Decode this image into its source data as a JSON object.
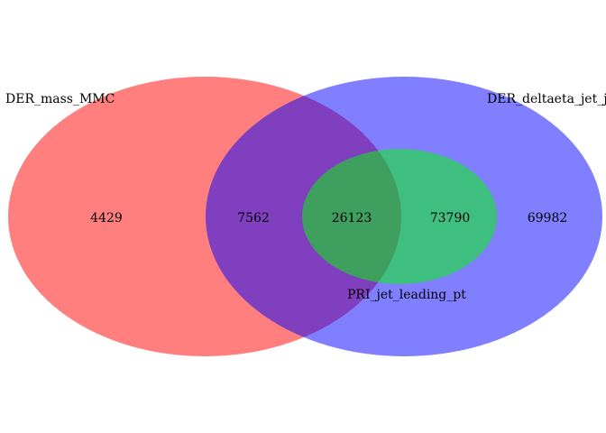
{
  "sets": [
    {
      "name": "DER_mass_MMC",
      "color": "#ff0000",
      "opacity": 0.5
    },
    {
      "name": "DER_deltaeta_jet_jet",
      "color": "#0000ff",
      "opacity": 0.5
    },
    {
      "name": "PRI_jet_leading_pt",
      "color": "#00ff00",
      "opacity": 0.5
    }
  ],
  "regions": [
    {
      "sets": [
        "DER_mass_MMC"
      ],
      "count": "4429"
    },
    {
      "sets": [
        "DER_mass_MMC",
        "DER_deltaeta_jet_jet"
      ],
      "count": "7562"
    },
    {
      "sets": [
        "DER_mass_MMC",
        "DER_deltaeta_jet_jet",
        "PRI_jet_leading_pt"
      ],
      "count": "26123"
    },
    {
      "sets": [
        "DER_deltaeta_jet_jet",
        "PRI_jet_leading_pt"
      ],
      "count": "73790"
    },
    {
      "sets": [
        "DER_deltaeta_jet_jet"
      ],
      "count": "69982"
    }
  ]
}
